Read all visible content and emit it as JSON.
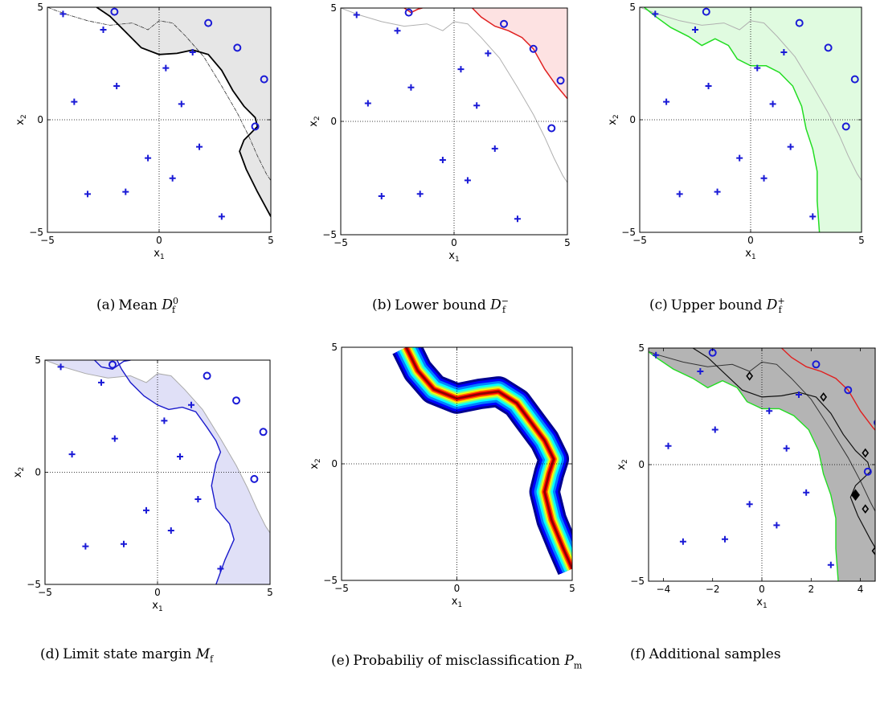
{
  "chart_data": [
    {
      "id": "a",
      "type": "scatter",
      "caption": {
        "letter": "(a)",
        "text": "Mean",
        "symbol": "D",
        "sup": "0",
        "sub": "f"
      },
      "xlabel": "x1",
      "ylabel": "x2",
      "xlim": [
        -5,
        5
      ],
      "ylim": [
        -5,
        5
      ],
      "xticks": [
        -5,
        0,
        5
      ],
      "yticks": [
        -5,
        0,
        5
      ],
      "fill_color": "#e6e6e6",
      "boundary_color": "#000000",
      "plus_points": [
        [
          -4.3,
          4.7
        ],
        [
          -2.5,
          4.0
        ],
        [
          -1.9,
          1.5
        ],
        [
          -3.8,
          0.8
        ],
        [
          0.3,
          2.3
        ],
        [
          1.5,
          3.0
        ],
        [
          1.0,
          0.7
        ],
        [
          -0.5,
          -1.7
        ],
        [
          0.6,
          -2.6
        ],
        [
          1.8,
          -1.2
        ],
        [
          -3.2,
          -3.3
        ],
        [
          -1.5,
          -3.2
        ],
        [
          2.8,
          -4.3
        ]
      ],
      "circle_points": [
        [
          -2.0,
          4.8
        ],
        [
          2.2,
          4.3
        ],
        [
          3.5,
          3.2
        ],
        [
          4.7,
          1.8
        ],
        [
          4.3,
          -0.3
        ]
      ]
    },
    {
      "id": "b",
      "type": "scatter",
      "caption": {
        "letter": "(b)",
        "text": "Lower bound",
        "symbol": "D",
        "sup": "−",
        "sub": "f"
      },
      "xlabel": "x1",
      "ylabel": "x2",
      "xlim": [
        -5,
        5
      ],
      "ylim": [
        -5,
        5
      ],
      "xticks": [
        -5,
        0,
        5
      ],
      "yticks": [
        -5,
        0,
        5
      ],
      "fill_color": "#fde2e2",
      "boundary_color": "#e02020",
      "plus_points": [
        [
          -4.3,
          4.7
        ],
        [
          -2.5,
          4.0
        ],
        [
          -1.9,
          1.5
        ],
        [
          -3.8,
          0.8
        ],
        [
          0.3,
          2.3
        ],
        [
          1.5,
          3.0
        ],
        [
          1.0,
          0.7
        ],
        [
          -0.5,
          -1.7
        ],
        [
          0.6,
          -2.6
        ],
        [
          1.8,
          -1.2
        ],
        [
          -3.2,
          -3.3
        ],
        [
          -1.5,
          -3.2
        ],
        [
          2.8,
          -4.3
        ]
      ],
      "circle_points": [
        [
          -2.0,
          4.8
        ],
        [
          2.2,
          4.3
        ],
        [
          3.5,
          3.2
        ],
        [
          4.7,
          1.8
        ],
        [
          4.3,
          -0.3
        ]
      ]
    },
    {
      "id": "c",
      "type": "scatter",
      "caption": {
        "letter": "(c)",
        "text": "Upper bound",
        "symbol": "D",
        "sup": "+",
        "sub": "f"
      },
      "xlabel": "x1",
      "ylabel": "x2",
      "xlim": [
        -5,
        5
      ],
      "ylim": [
        -5,
        5
      ],
      "xticks": [
        -5,
        0,
        5
      ],
      "yticks": [
        -5,
        0,
        5
      ],
      "fill_color": "#e0fbe0",
      "boundary_color": "#22dd22",
      "plus_points": [
        [
          -4.3,
          4.7
        ],
        [
          -2.5,
          4.0
        ],
        [
          -1.9,
          1.5
        ],
        [
          -3.8,
          0.8
        ],
        [
          0.3,
          2.3
        ],
        [
          1.5,
          3.0
        ],
        [
          1.0,
          0.7
        ],
        [
          -0.5,
          -1.7
        ],
        [
          0.6,
          -2.6
        ],
        [
          1.8,
          -1.2
        ],
        [
          -3.2,
          -3.3
        ],
        [
          -1.5,
          -3.2
        ],
        [
          2.8,
          -4.3
        ]
      ],
      "circle_points": [
        [
          -2.0,
          4.8
        ],
        [
          2.2,
          4.3
        ],
        [
          3.5,
          3.2
        ],
        [
          4.7,
          1.8
        ],
        [
          4.3,
          -0.3
        ]
      ]
    },
    {
      "id": "d",
      "type": "scatter",
      "caption": {
        "letter": "(d)",
        "text": "Limit state margin",
        "symbol": "M",
        "sup": "",
        "sub": "f"
      },
      "xlabel": "x1",
      "ylabel": "x2",
      "xlim": [
        -5,
        5
      ],
      "ylim": [
        -5,
        5
      ],
      "xticks": [
        -5,
        0,
        5
      ],
      "yticks": [
        -5,
        0,
        5
      ],
      "fill_color": "#e0e0f7",
      "boundary_color": "#1a1acc",
      "plus_points": [
        [
          -4.3,
          4.7
        ],
        [
          -2.5,
          4.0
        ],
        [
          -1.9,
          1.5
        ],
        [
          -3.8,
          0.8
        ],
        [
          0.3,
          2.3
        ],
        [
          1.5,
          3.0
        ],
        [
          1.0,
          0.7
        ],
        [
          -0.5,
          -1.7
        ],
        [
          0.6,
          -2.6
        ],
        [
          1.8,
          -1.2
        ],
        [
          -3.2,
          -3.3
        ],
        [
          -1.5,
          -3.2
        ],
        [
          2.8,
          -4.3
        ]
      ],
      "circle_points": [
        [
          -2.0,
          4.8
        ],
        [
          2.2,
          4.3
        ],
        [
          3.5,
          3.2
        ],
        [
          4.7,
          1.8
        ],
        [
          4.3,
          -0.3
        ]
      ]
    },
    {
      "id": "e",
      "type": "heatmap",
      "caption": {
        "letter": "(e)",
        "text": "Probabiliy of misclassification",
        "symbol": "P",
        "sup": "",
        "sub": "m"
      },
      "xlabel": "x1",
      "ylabel": "x2",
      "xlim": [
        -5,
        5
      ],
      "ylim": [
        -5,
        5
      ],
      "xticks": [
        -5,
        0,
        5
      ],
      "yticks": [
        -5,
        0,
        5
      ],
      "colormap": "jet"
    },
    {
      "id": "f",
      "type": "scatter",
      "caption": {
        "letter": "(f)",
        "text": "Additional samples",
        "symbol": "",
        "sup": "",
        "sub": ""
      },
      "xlabel": "x1",
      "ylabel": "x2",
      "xlim": [
        -4.6,
        4.6
      ],
      "ylim": [
        -5,
        5
      ],
      "xticks": [
        -4,
        -2,
        0,
        2,
        4
      ],
      "yticks": [
        -5,
        0,
        5
      ],
      "fill_color": "#b4b4b4",
      "plus_points": [
        [
          -4.3,
          4.7
        ],
        [
          -2.5,
          4.0
        ],
        [
          -1.9,
          1.5
        ],
        [
          -3.8,
          0.8
        ],
        [
          0.3,
          2.3
        ],
        [
          1.5,
          3.0
        ],
        [
          1.0,
          0.7
        ],
        [
          -0.5,
          -1.7
        ],
        [
          0.6,
          -2.6
        ],
        [
          1.8,
          -1.2
        ],
        [
          -3.2,
          -3.3
        ],
        [
          -1.5,
          -3.2
        ],
        [
          2.8,
          -4.3
        ]
      ],
      "circle_points": [
        [
          -2.0,
          4.8
        ],
        [
          2.2,
          4.3
        ],
        [
          3.5,
          3.2
        ],
        [
          4.7,
          1.8
        ],
        [
          4.3,
          -0.3
        ]
      ],
      "diamond_points": [
        [
          -0.5,
          3.8
        ],
        [
          2.5,
          2.9
        ],
        [
          4.2,
          0.5
        ],
        [
          3.8,
          -1.3
        ],
        [
          4.2,
          -1.9
        ],
        [
          4.6,
          -3.7
        ]
      ]
    }
  ]
}
